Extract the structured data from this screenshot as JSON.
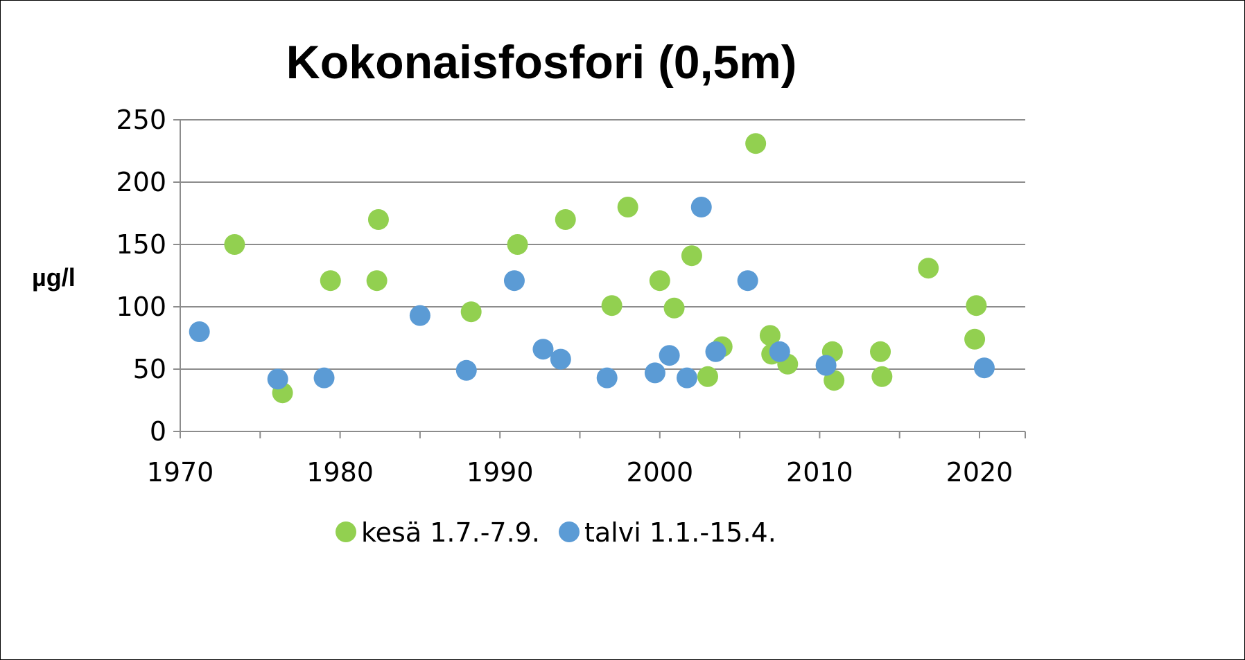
{
  "chart_data": {
    "type": "scatter",
    "title": "Kokonaisfosfori (0,5m)",
    "xlabel": "",
    "ylabel": "µg/l",
    "xlim": [
      1970,
      2023
    ],
    "ylim": [
      0,
      250
    ],
    "xticks": [
      1970,
      1980,
      1990,
      2000,
      2010,
      2020
    ],
    "yticks": [
      0,
      50,
      100,
      150,
      200,
      250
    ],
    "grid": "horizontal",
    "legend": "bottom",
    "series": [
      {
        "name": "kesä 1.7.-7.9.",
        "color": "#92d050",
        "points": [
          [
            1973.4,
            150
          ],
          [
            1976.4,
            31
          ],
          [
            1979.4,
            121
          ],
          [
            1982.4,
            170
          ],
          [
            1982.3,
            121
          ],
          [
            1988.2,
            96
          ],
          [
            1991.1,
            150
          ],
          [
            1994.1,
            170
          ],
          [
            1998.0,
            180
          ],
          [
            1997.0,
            101
          ],
          [
            2000.0,
            121
          ],
          [
            2000.9,
            99
          ],
          [
            2002.0,
            141
          ],
          [
            2003.0,
            44
          ],
          [
            2003.9,
            68
          ],
          [
            2006.0,
            231
          ],
          [
            2006.9,
            77
          ],
          [
            2007.0,
            62
          ],
          [
            2008.0,
            54
          ],
          [
            2010.8,
            64
          ],
          [
            2010.9,
            41
          ],
          [
            2013.8,
            64
          ],
          [
            2013.9,
            44
          ],
          [
            2016.8,
            131
          ],
          [
            2019.8,
            101
          ],
          [
            2019.7,
            74
          ]
        ]
      },
      {
        "name": "talvi 1.1.-15.4.",
        "color": "#5b9bd5",
        "points": [
          [
            1971.2,
            80
          ],
          [
            1976.1,
            42
          ],
          [
            1979.0,
            43
          ],
          [
            1985.0,
            93
          ],
          [
            1987.9,
            49
          ],
          [
            1990.9,
            121
          ],
          [
            1992.7,
            66
          ],
          [
            1993.8,
            58
          ],
          [
            1996.7,
            43
          ],
          [
            1999.7,
            47
          ],
          [
            2000.6,
            61
          ],
          [
            2001.7,
            43
          ],
          [
            2002.6,
            180
          ],
          [
            2003.5,
            64
          ],
          [
            2005.5,
            121
          ],
          [
            2007.5,
            64
          ],
          [
            2010.4,
            53
          ],
          [
            2020.3,
            51
          ]
        ]
      }
    ]
  }
}
